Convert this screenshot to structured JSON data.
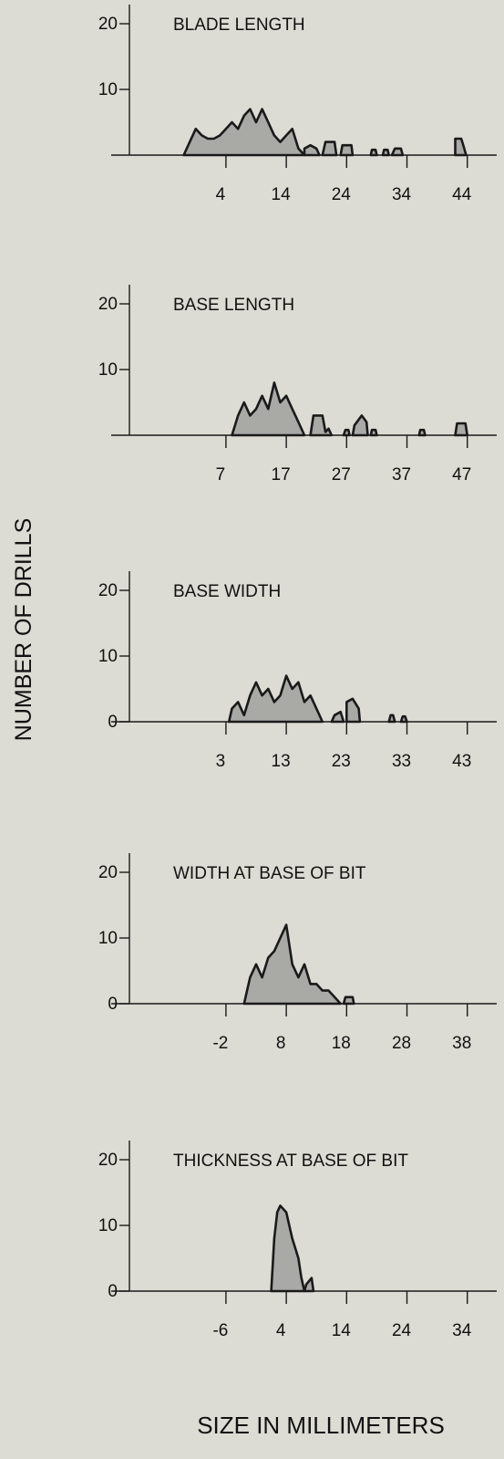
{
  "ylabel": "NUMBER OF DRILLS",
  "xlabel": "SIZE IN MILLIMETERS",
  "colors": {
    "background": "#dcdcd4",
    "fill": "#a9a9a6",
    "stroke": "#1a1a1a"
  },
  "chart_data": [
    {
      "type": "area",
      "title": "BLADE LENGTH",
      "x_ticks": [
        4,
        14,
        24,
        34,
        44
      ],
      "y_ticks": [
        10,
        20
      ],
      "xlim": [
        -12,
        53
      ],
      "ylim": [
        0,
        24
      ],
      "polygons": [
        [
          [
            -3,
            0
          ],
          [
            -2,
            2
          ],
          [
            -1,
            4
          ],
          [
            0,
            3
          ],
          [
            1,
            2.5
          ],
          [
            2,
            2.5
          ],
          [
            3,
            3
          ],
          [
            4,
            4
          ],
          [
            5,
            5
          ],
          [
            6,
            4
          ],
          [
            7,
            6
          ],
          [
            8,
            7
          ],
          [
            9,
            5
          ],
          [
            10,
            7
          ],
          [
            11,
            5
          ],
          [
            12,
            3
          ],
          [
            13,
            2
          ],
          [
            14,
            3
          ],
          [
            15,
            4
          ],
          [
            16,
            1
          ],
          [
            17,
            0
          ]
        ],
        [
          [
            17,
            0
          ],
          [
            17,
            1
          ],
          [
            18,
            1.5
          ],
          [
            19,
            1
          ],
          [
            19.5,
            0
          ]
        ],
        [
          [
            20,
            0
          ],
          [
            20.5,
            2
          ],
          [
            22,
            2
          ],
          [
            22.3,
            0
          ]
        ],
        [
          [
            23,
            0
          ],
          [
            23.3,
            1.5
          ],
          [
            24.8,
            1.5
          ],
          [
            25,
            0
          ]
        ],
        [
          [
            28,
            0
          ],
          [
            28.2,
            0.8
          ],
          [
            28.8,
            0.8
          ],
          [
            29,
            0
          ]
        ],
        [
          [
            30,
            0
          ],
          [
            30.2,
            0.8
          ],
          [
            30.8,
            0.8
          ],
          [
            31,
            0
          ]
        ],
        [
          [
            31.5,
            0
          ],
          [
            32,
            1
          ],
          [
            33,
            1
          ],
          [
            33.3,
            0
          ]
        ],
        [
          [
            42,
            0
          ],
          [
            42,
            2.5
          ],
          [
            43,
            2.5
          ],
          [
            43.5,
            1
          ],
          [
            43.8,
            0
          ]
        ]
      ]
    },
    {
      "type": "area",
      "title": "BASE LENGTH",
      "x_ticks": [
        7,
        17,
        27,
        37,
        47
      ],
      "y_ticks": [
        10,
        20
      ],
      "xlim": [
        -9,
        56
      ],
      "ylim": [
        0,
        24
      ],
      "polygons": [
        [
          [
            8,
            0
          ],
          [
            9,
            3
          ],
          [
            10,
            5
          ],
          [
            11,
            3
          ],
          [
            12,
            4
          ],
          [
            13,
            6
          ],
          [
            14,
            4
          ],
          [
            15,
            8
          ],
          [
            16,
            5
          ],
          [
            17,
            6
          ],
          [
            18,
            4
          ],
          [
            19,
            2
          ],
          [
            20,
            0
          ]
        ],
        [
          [
            21,
            0
          ],
          [
            21.5,
            3
          ],
          [
            23,
            3
          ],
          [
            23.5,
            0.5
          ],
          [
            24,
            1
          ],
          [
            24.5,
            0
          ]
        ],
        [
          [
            26.5,
            0
          ],
          [
            26.8,
            0.8
          ],
          [
            27.3,
            0.8
          ],
          [
            27.5,
            0
          ]
        ],
        [
          [
            28,
            0
          ],
          [
            28.3,
            1.5
          ],
          [
            29.5,
            3
          ],
          [
            30.3,
            2
          ],
          [
            30.5,
            0
          ]
        ],
        [
          [
            31,
            0
          ],
          [
            31.2,
            0.8
          ],
          [
            31.8,
            0.8
          ],
          [
            32,
            0
          ]
        ],
        [
          [
            39,
            0
          ],
          [
            39.2,
            0.8
          ],
          [
            39.8,
            0.8
          ],
          [
            40,
            0
          ]
        ],
        [
          [
            45,
            0
          ],
          [
            45.3,
            1.8
          ],
          [
            46.7,
            1.8
          ],
          [
            47,
            0
          ]
        ]
      ]
    },
    {
      "type": "area",
      "title": "BASE WIDTH",
      "x_ticks": [
        3,
        13,
        23,
        33,
        43
      ],
      "y_ticks": [
        0,
        10,
        20
      ],
      "xlim": [
        -13,
        52
      ],
      "ylim": [
        0,
        24
      ],
      "polygons": [
        [
          [
            3.5,
            0
          ],
          [
            4,
            2
          ],
          [
            5,
            3
          ],
          [
            6,
            1
          ],
          [
            7,
            4
          ],
          [
            8,
            6
          ],
          [
            9,
            4
          ],
          [
            10,
            5
          ],
          [
            11,
            3
          ],
          [
            12,
            4
          ],
          [
            13,
            7
          ],
          [
            14,
            5
          ],
          [
            15,
            6
          ],
          [
            16,
            3
          ],
          [
            17,
            4
          ],
          [
            18,
            2
          ],
          [
            19,
            0
          ]
        ],
        [
          [
            20.5,
            0
          ],
          [
            21,
            1
          ],
          [
            22,
            1.5
          ],
          [
            22.5,
            0
          ]
        ],
        [
          [
            23,
            0
          ],
          [
            23,
            3
          ],
          [
            24,
            3.5
          ],
          [
            25,
            2
          ],
          [
            25.2,
            0
          ]
        ],
        [
          [
            30,
            0
          ],
          [
            30.3,
            1
          ],
          [
            30.7,
            1
          ],
          [
            31,
            0
          ]
        ],
        [
          [
            32,
            0
          ],
          [
            32.3,
            0.8
          ],
          [
            32.7,
            0.8
          ],
          [
            33,
            0
          ]
        ]
      ]
    },
    {
      "type": "area",
      "title": "WIDTH AT BASE OF BIT",
      "x_ticks": [
        -2,
        8,
        18,
        28,
        38
      ],
      "y_ticks": [
        0,
        10,
        20
      ],
      "xlim": [
        -18,
        47
      ],
      "ylim": [
        0,
        24
      ],
      "polygons": [
        [
          [
            1,
            0
          ],
          [
            1.5,
            2
          ],
          [
            2,
            4
          ],
          [
            3,
            6
          ],
          [
            4,
            4
          ],
          [
            5,
            7
          ],
          [
            6,
            8
          ],
          [
            7,
            10
          ],
          [
            8,
            12
          ],
          [
            9,
            6
          ],
          [
            10,
            4
          ],
          [
            11,
            6
          ],
          [
            12,
            3
          ],
          [
            13,
            3
          ],
          [
            14,
            2
          ],
          [
            15,
            2
          ],
          [
            16,
            1
          ],
          [
            17,
            0
          ]
        ],
        [
          [
            17.5,
            0
          ],
          [
            17.8,
            1
          ],
          [
            19,
            1
          ],
          [
            19.2,
            0
          ]
        ]
      ]
    },
    {
      "type": "area",
      "title": "THICKNESS AT BASE OF BIT",
      "x_ticks": [
        -6,
        4,
        14,
        24,
        34
      ],
      "y_ticks": [
        0,
        10,
        20
      ],
      "xlim": [
        -22,
        43
      ],
      "ylim": [
        0,
        24
      ],
      "polygons": [
        [
          [
            1.5,
            0
          ],
          [
            2,
            8
          ],
          [
            2.5,
            12
          ],
          [
            3,
            13
          ],
          [
            4,
            12
          ],
          [
            5,
            8
          ],
          [
            6,
            5
          ],
          [
            6.5,
            2
          ],
          [
            7,
            0
          ]
        ],
        [
          [
            7,
            0
          ],
          [
            7.3,
            1
          ],
          [
            8.2,
            2
          ],
          [
            8.5,
            0
          ]
        ]
      ]
    }
  ]
}
